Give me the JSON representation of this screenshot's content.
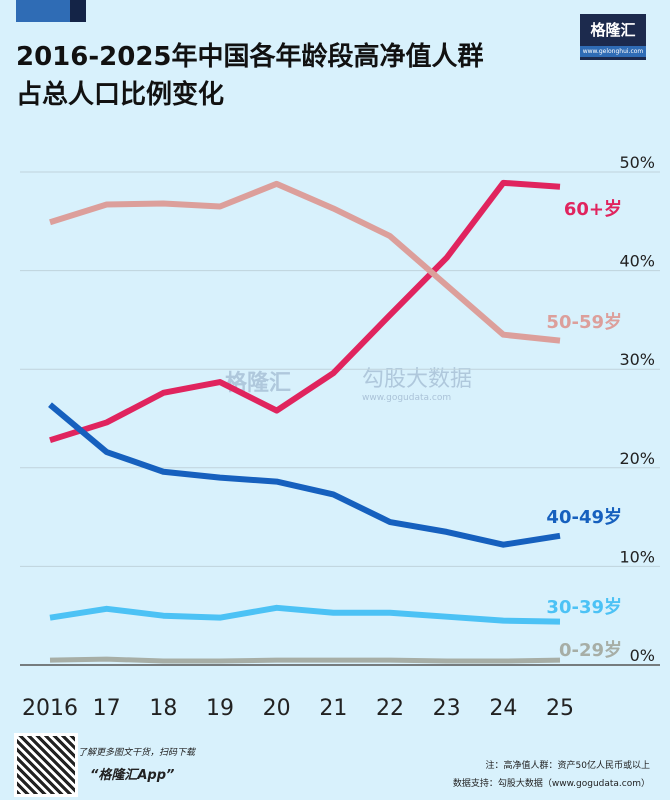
{
  "header": {
    "title_line1": "2016-2025年中国各年龄段高净值人群",
    "title_line2": "占总人口比例变化",
    "logo_name": "格隆汇",
    "logo_url": "www.gelonghui.com"
  },
  "watermark": {
    "brand": "格隆汇",
    "source": "勾股大数据",
    "url": "www.gogudata.com"
  },
  "footer": {
    "qr_text": "了解更多图文干货，扫码下载",
    "app": "“格隆汇App”",
    "note": "注：高净值人群：资产50亿人民币或以上",
    "source": "数据支持：勾股大数据（www.gogudata.com）"
  },
  "chart_data": {
    "type": "line",
    "title": "2016-2025年中国各年龄段高净值人群占总人口比例变化",
    "categories": [
      "2016",
      "17",
      "18",
      "19",
      "20",
      "21",
      "22",
      "23",
      "24",
      "25"
    ],
    "ylim": [
      0,
      50
    ],
    "yticks": [
      "0%",
      "10%",
      "20%",
      "30%",
      "40%",
      "50%"
    ],
    "y_axis_side": "right",
    "grid": true,
    "legend": "inline-right",
    "series": [
      {
        "name": "60+岁",
        "color": "#e0245e",
        "values": [
          22.8,
          24.6,
          27.6,
          28.7,
          25.8,
          29.6,
          35.5,
          41.3,
          48.9,
          48.5
        ]
      },
      {
        "name": "50-59岁",
        "color": "#dc9f9b",
        "values": [
          44.9,
          46.7,
          46.8,
          46.5,
          48.8,
          46.3,
          43.5,
          38.5,
          33.5,
          32.9
        ]
      },
      {
        "name": "40-49岁",
        "color": "#1660be",
        "values": [
          26.4,
          21.6,
          19.6,
          19.0,
          18.6,
          17.3,
          14.5,
          13.5,
          12.2,
          13.1
        ]
      },
      {
        "name": "30-39岁",
        "color": "#4cc2f5",
        "values": [
          4.8,
          5.7,
          5.0,
          4.8,
          5.8,
          5.3,
          5.3,
          4.9,
          4.5,
          4.4
        ]
      },
      {
        "name": "0-29岁",
        "color": "#a7aea6",
        "values": [
          0.5,
          0.6,
          0.4,
          0.4,
          0.5,
          0.5,
          0.5,
          0.4,
          0.4,
          0.5
        ]
      }
    ]
  }
}
